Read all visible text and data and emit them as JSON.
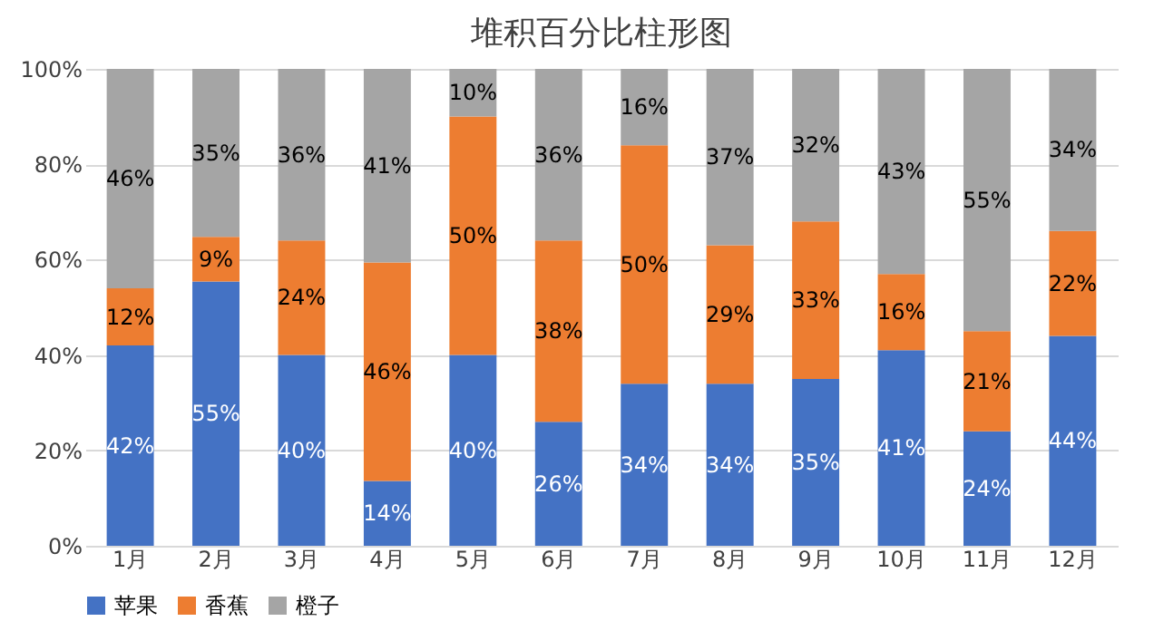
{
  "chart_data": {
    "type": "bar",
    "title": "堆积百分比柱形图",
    "stacked": true,
    "categories": [
      "1月",
      "2月",
      "3月",
      "4月",
      "5月",
      "6月",
      "7月",
      "8月",
      "9月",
      "10月",
      "11月",
      "12月"
    ],
    "series": [
      {
        "name": "苹果",
        "color": "#4472c4",
        "values": [
          42,
          55.4,
          40,
          13.6,
          40,
          26,
          34,
          34,
          35,
          41,
          24,
          44
        ],
        "value_labels": [
          "42%",
          "55%",
          "40%",
          "14%",
          "40%",
          "26%",
          "34%",
          "34%",
          "35%",
          "41%",
          "24%",
          "44%"
        ]
      },
      {
        "name": "香蕉",
        "color": "#ed7d31",
        "values": [
          12,
          9.4,
          24,
          45.8,
          50,
          38,
          50,
          29,
          33,
          16,
          21,
          22
        ],
        "value_labels": [
          "12%",
          "9%",
          "24%",
          "46%",
          "50%",
          "38%",
          "50%",
          "29%",
          "33%",
          "16%",
          "21%",
          "22%"
        ]
      },
      {
        "name": "橙子",
        "color": "#a5a5a5",
        "values": [
          46,
          35.2,
          36,
          40.6,
          10,
          36,
          16,
          37,
          32,
          43,
          55,
          34
        ],
        "value_labels": [
          "46%",
          "35%",
          "36%",
          "41%",
          "10%",
          "36%",
          "16%",
          "37%",
          "32%",
          "43%",
          "55%",
          "34%"
        ]
      }
    ],
    "ylim": [
      0,
      100
    ],
    "yticks": [
      {
        "value": 0,
        "label": "0%"
      },
      {
        "value": 20,
        "label": "20%"
      },
      {
        "value": 40,
        "label": "40%"
      },
      {
        "value": 60,
        "label": "60%"
      },
      {
        "value": 80,
        "label": "80%"
      },
      {
        "value": 100,
        "label": "100%"
      }
    ],
    "grid": "y",
    "legend": "bottom"
  }
}
